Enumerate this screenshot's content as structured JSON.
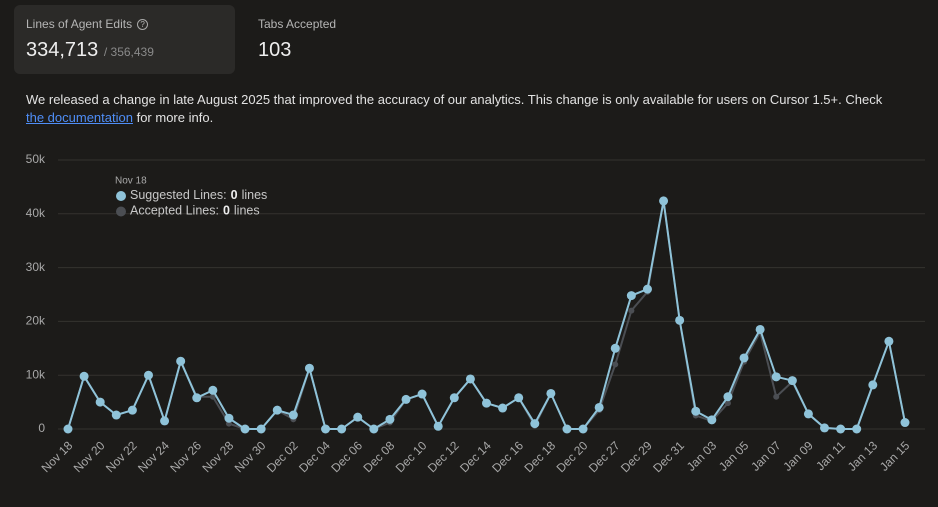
{
  "cards": [
    {
      "title": "Lines of Agent Edits",
      "value": "334,713",
      "total": "/ 356,439"
    },
    {
      "title": "Tabs Accepted",
      "value": "103"
    }
  ],
  "notice": {
    "text": "We released a change in late August 2025 that improved the accuracy of our analytics. This change is only available for users on Cursor 1.5+. Check",
    "link": "the documentation",
    "after": "for more info."
  },
  "chart_data": {
    "type": "line",
    "categories": [
      "Nov 18",
      null,
      "Nov 20",
      null,
      "Nov 22",
      null,
      "Nov 24",
      null,
      "Nov 26",
      null,
      "Nov 28",
      null,
      "Nov 30",
      null,
      "Dec 02",
      null,
      "Dec 04",
      null,
      "Dec 06",
      null,
      "Dec 08",
      null,
      "Dec 10",
      null,
      "Dec 12",
      null,
      "Dec 14",
      null,
      "Dec 16",
      null,
      "Dec 18",
      null,
      "Dec 20",
      null,
      "Dec 27",
      null,
      "Dec 29",
      null,
      "Dec 31",
      null,
      "Jan 03",
      null,
      "Jan 05",
      null,
      "Jan 07",
      null,
      "Jan 09",
      null,
      "Jan 11",
      null,
      "Jan 13",
      null,
      "Jan 15"
    ],
    "series": [
      {
        "name": "Accepted Lines",
        "color": "#4b4e53",
        "values": [
          0,
          9800,
          5000,
          2600,
          3500,
          10000,
          1500,
          12600,
          6000,
          6000,
          1000,
          0,
          0,
          3500,
          1800,
          11300,
          0,
          0,
          2200,
          0,
          1200,
          5500,
          6500,
          500,
          5800,
          9300,
          4800,
          3900,
          5800,
          600,
          6600,
          0,
          0,
          3500,
          12000,
          22000,
          25500,
          42400,
          20200,
          2500,
          1500,
          4800,
          12500,
          18000,
          6000,
          8800,
          2800,
          200,
          0,
          0,
          8200,
          16300,
          1200
        ]
      },
      {
        "name": "Suggested Lines",
        "color": "#8fc3d9",
        "values": [
          0,
          9800,
          5000,
          2600,
          3500,
          10000,
          1500,
          12600,
          5800,
          7200,
          2000,
          0,
          0,
          3500,
          2600,
          11300,
          0,
          0,
          2200,
          0,
          1800,
          5500,
          6500,
          500,
          5800,
          9300,
          4800,
          3900,
          5800,
          1000,
          6600,
          0,
          0,
          4000,
          15000,
          24800,
          26000,
          42400,
          20200,
          3300,
          1700,
          6000,
          13200,
          18500,
          9700,
          9000,
          2800,
          200,
          0,
          0,
          8200,
          16300,
          1200
        ]
      }
    ],
    "ylim": [
      0,
      50000
    ],
    "yticks": [
      0,
      {
        "value": 10000,
        "label": "10k"
      },
      {
        "value": 20000,
        "label": "20k"
      },
      {
        "value": 30000,
        "label": "30k"
      },
      {
        "value": 40000,
        "label": "40k"
      },
      {
        "value": 50000,
        "label": "50k"
      }
    ],
    "grid": true,
    "tooltip": {
      "date": "Nov 18",
      "unit": "lines",
      "items": [
        {
          "label": "Suggested Lines:",
          "value": 0
        },
        {
          "label": "Accepted Lines:",
          "value": 0
        }
      ]
    }
  }
}
